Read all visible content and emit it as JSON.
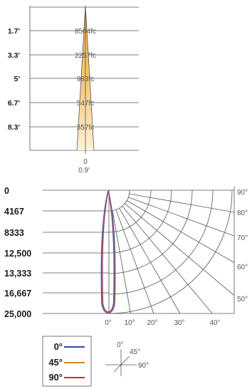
{
  "chart_data": [
    {
      "type": "area",
      "name_hint": "cone",
      "distances": [
        "1.7'",
        "3.3'",
        "5'",
        "6.7'",
        "8.3'"
      ],
      "illuminance": [
        "8504fc",
        "2257fc",
        "983fc",
        "547fc",
        "357fc"
      ],
      "beam_center_label": "0",
      "beam_width_label": "0.9'"
    },
    {
      "type": "line",
      "name_hint": "polar",
      "radial_labels": [
        "0",
        "4167",
        "8333",
        "12,500",
        "13,333",
        "16,667",
        "25,000"
      ],
      "angle_labels_right": [
        "90°",
        "80°",
        "70°",
        "60°",
        "50°"
      ],
      "angle_labels_bottom": [
        "0°",
        "10°",
        "20°",
        "30°",
        "40°"
      ],
      "series": [
        {
          "name": "0°",
          "color": "#2c4fa3"
        },
        {
          "name": "45°",
          "color": "#c8892a"
        },
        {
          "name": "90°",
          "color": "#d22a2a"
        }
      ]
    }
  ],
  "legend_box": {
    "entries": [
      "0°",
      "45°",
      "90°"
    ]
  },
  "orientation_key": {
    "labels": [
      "0°",
      "45°",
      "90°"
    ]
  }
}
